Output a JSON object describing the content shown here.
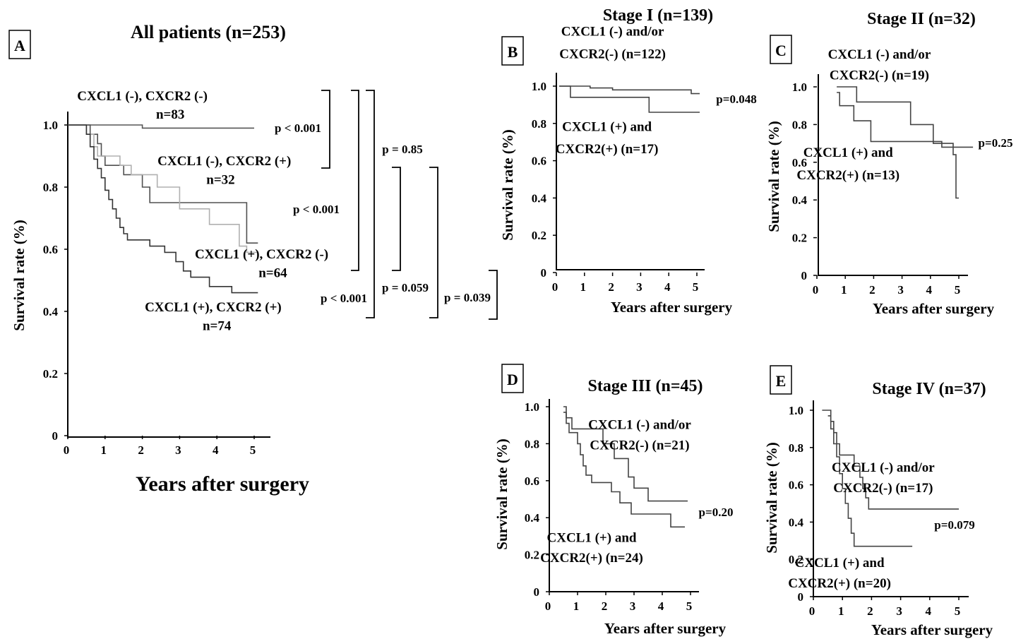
{
  "chart_data": [
    {
      "id": "A",
      "type": "line",
      "panel_letter": "A",
      "title": "All patients (n=253)",
      "xlabel": "Years after surgery",
      "ylabel": "Survival rate (%)",
      "xlim": [
        0,
        5.5
      ],
      "ylim": [
        0,
        1.0
      ],
      "xticks": [
        "0",
        "1",
        "2",
        "3",
        "4",
        "5"
      ],
      "yticks": [
        "0",
        "0.2",
        "0.4",
        "0.6",
        "0.8",
        "1.0"
      ],
      "series": [
        {
          "color": "#555555",
          "points": [
            [
              0,
              1.0
            ],
            [
              2.0,
              1.0
            ],
            [
              2.0,
              0.99
            ],
            [
              5.0,
              0.99
            ]
          ]
        },
        {
          "color": "#505050",
          "points": [
            [
              0,
              1.0
            ],
            [
              0.6,
              1.0
            ],
            [
              0.6,
              0.97
            ],
            [
              0.8,
              0.97
            ],
            [
              0.8,
              0.94
            ],
            [
              0.9,
              0.94
            ],
            [
              0.9,
              0.9
            ],
            [
              1.0,
              0.9
            ],
            [
              1.0,
              0.87
            ],
            [
              1.5,
              0.87
            ],
            [
              1.5,
              0.84
            ],
            [
              2.0,
              0.84
            ],
            [
              2.0,
              0.8
            ],
            [
              2.2,
              0.8
            ],
            [
              2.2,
              0.75
            ],
            [
              4.8,
              0.75
            ],
            [
              4.8,
              0.62
            ],
            [
              5.1,
              0.62
            ]
          ]
        },
        {
          "color": "#b0b0b0",
          "points": [
            [
              0,
              1.0
            ],
            [
              0.5,
              1.0
            ],
            [
              0.5,
              0.97
            ],
            [
              0.7,
              0.97
            ],
            [
              0.7,
              0.93
            ],
            [
              0.8,
              0.93
            ],
            [
              0.8,
              0.9
            ],
            [
              1.4,
              0.9
            ],
            [
              1.4,
              0.87
            ],
            [
              1.7,
              0.87
            ],
            [
              1.7,
              0.84
            ],
            [
              2.4,
              0.84
            ],
            [
              2.4,
              0.8
            ],
            [
              3.0,
              0.8
            ],
            [
              3.0,
              0.73
            ],
            [
              3.8,
              0.73
            ],
            [
              3.8,
              0.68
            ],
            [
              4.6,
              0.68
            ],
            [
              4.6,
              0.61
            ],
            [
              4.8,
              0.61
            ],
            [
              4.8,
              0.59
            ],
            [
              5.1,
              0.59
            ]
          ]
        },
        {
          "color": "#333333",
          "points": [
            [
              0,
              1.0
            ],
            [
              0.5,
              1.0
            ],
            [
              0.5,
              0.97
            ],
            [
              0.6,
              0.97
            ],
            [
              0.6,
              0.93
            ],
            [
              0.7,
              0.93
            ],
            [
              0.7,
              0.89
            ],
            [
              0.8,
              0.89
            ],
            [
              0.8,
              0.86
            ],
            [
              0.9,
              0.86
            ],
            [
              0.9,
              0.83
            ],
            [
              1.0,
              0.83
            ],
            [
              1.0,
              0.79
            ],
            [
              1.1,
              0.79
            ],
            [
              1.1,
              0.76
            ],
            [
              1.2,
              0.76
            ],
            [
              1.2,
              0.73
            ],
            [
              1.3,
              0.73
            ],
            [
              1.3,
              0.7
            ],
            [
              1.4,
              0.7
            ],
            [
              1.4,
              0.67
            ],
            [
              1.5,
              0.67
            ],
            [
              1.5,
              0.65
            ],
            [
              1.6,
              0.65
            ],
            [
              1.6,
              0.63
            ],
            [
              2.2,
              0.63
            ],
            [
              2.2,
              0.61
            ],
            [
              2.6,
              0.61
            ],
            [
              2.6,
              0.59
            ],
            [
              2.9,
              0.59
            ],
            [
              2.9,
              0.56
            ],
            [
              3.1,
              0.56
            ],
            [
              3.1,
              0.53
            ],
            [
              3.3,
              0.53
            ],
            [
              3.3,
              0.51
            ],
            [
              3.8,
              0.51
            ],
            [
              3.8,
              0.48
            ],
            [
              4.4,
              0.48
            ],
            [
              4.4,
              0.46
            ],
            [
              5.1,
              0.46
            ]
          ]
        }
      ],
      "annotations": [
        {
          "text": "CXCL1 (-), CXCR2 (-)",
          "x": 2.0,
          "y": 1.08
        },
        {
          "text": "n=83",
          "x": 2.75,
          "y": 1.02
        },
        {
          "text": "CXCL1 (-), CXCR2 (+)",
          "x": 4.2,
          "y": 0.87
        },
        {
          "text": "n=32",
          "x": 4.1,
          "y": 0.81
        },
        {
          "text": "CXCL1 (+), CXCR2 (-)",
          "x": 5.2,
          "y": 0.57
        },
        {
          "text": "n=64",
          "x": 5.5,
          "y": 0.51
        },
        {
          "text": "CXCL1 (+), CXCR2 (+)",
          "x": 3.9,
          "y": 0.4
        },
        {
          "text": "n=74",
          "x": 4.0,
          "y": 0.34
        }
      ],
      "p_values": [
        "p < 0.001",
        "p < 0.001",
        "p < 0.001",
        "p = 0.85",
        "p = 0.059",
        "p = 0.039"
      ]
    },
    {
      "id": "B",
      "type": "line",
      "panel_letter": "B",
      "title": "Stage I (n=139)",
      "xlabel": "Years after surgery",
      "ylabel": "Survival rate (%)",
      "xlim": [
        0,
        5.5
      ],
      "ylim": [
        0,
        1.0
      ],
      "xticks": [
        "0",
        "1",
        "2",
        "3",
        "4",
        "5"
      ],
      "yticks": [
        "0",
        "0.2",
        "0.4",
        "0.6",
        "0.8",
        "1.0"
      ],
      "series": [
        {
          "color": "#444444",
          "points": [
            [
              0.1,
              1.0
            ],
            [
              1.2,
              1.0
            ],
            [
              1.2,
              0.99
            ],
            [
              2.0,
              0.99
            ],
            [
              2.0,
              0.98
            ],
            [
              4.8,
              0.98
            ],
            [
              4.8,
              0.96
            ],
            [
              5.1,
              0.96
            ]
          ]
        },
        {
          "color": "#444444",
          "points": [
            [
              0.1,
              1.0
            ],
            [
              0.5,
              1.0
            ],
            [
              0.5,
              0.94
            ],
            [
              3.3,
              0.94
            ],
            [
              3.3,
              0.86
            ],
            [
              5.1,
              0.86
            ]
          ]
        }
      ],
      "annotations": [
        {
          "text": "CXCL1 (-) and/or",
          "x": 2.0,
          "y": 1.27
        },
        {
          "text": "CXCR2(-) (n=122)",
          "x": 2.0,
          "y": 1.15
        },
        {
          "text": "CXCL1 (+) and",
          "x": 1.8,
          "y": 0.76
        },
        {
          "text": "CXCR2(+) (n=17)",
          "x": 1.8,
          "y": 0.64
        }
      ],
      "p_values": [
        "p=0.048"
      ]
    },
    {
      "id": "C",
      "type": "line",
      "panel_letter": "C",
      "title": "Stage II (n=32)",
      "xlabel": "Years after surgery",
      "ylabel": "Survival rate (%)",
      "xlim": [
        0,
        5.5
      ],
      "ylim": [
        0,
        1.0
      ],
      "xticks": [
        "0",
        "1",
        "2",
        "3",
        "4",
        "5"
      ],
      "yticks": [
        "0",
        "0.2",
        "0.4",
        "0.6",
        "0.8",
        "1.0"
      ],
      "series": [
        {
          "color": "#444444",
          "points": [
            [
              0.7,
              1.0
            ],
            [
              1.4,
              1.0
            ],
            [
              1.4,
              0.92
            ],
            [
              3.3,
              0.92
            ],
            [
              3.3,
              0.8
            ],
            [
              4.1,
              0.8
            ],
            [
              4.1,
              0.7
            ],
            [
              4.8,
              0.7
            ],
            [
              4.8,
              0.64
            ],
            [
              4.9,
              0.64
            ],
            [
              4.9,
              0.41
            ],
            [
              5.0,
              0.41
            ]
          ]
        },
        {
          "color": "#444444",
          "points": [
            [
              0.7,
              0.97
            ],
            [
              0.8,
              0.97
            ],
            [
              0.8,
              0.9
            ],
            [
              1.3,
              0.9
            ],
            [
              1.3,
              0.82
            ],
            [
              1.9,
              0.82
            ],
            [
              1.9,
              0.71
            ],
            [
              4.4,
              0.71
            ],
            [
              4.4,
              0.68
            ],
            [
              5.5,
              0.68
            ]
          ]
        }
      ],
      "annotations": [
        {
          "text": "CXCL1 (-) and/or",
          "x": 2.2,
          "y": 1.15
        },
        {
          "text": "CXCR2(-) (n=19)",
          "x": 2.2,
          "y": 1.04
        },
        {
          "text": "CXCL1 (+) and",
          "x": 1.1,
          "y": 0.63
        },
        {
          "text": "CXCR2(+) (n=13)",
          "x": 1.1,
          "y": 0.51
        }
      ],
      "p_values": [
        "p=0.25"
      ]
    },
    {
      "id": "D",
      "type": "line",
      "panel_letter": "D",
      "title": "Stage III (n=45)",
      "xlabel": "Years after surgery",
      "ylabel": "Survival rate (%)",
      "xlim": [
        0,
        5.3
      ],
      "ylim": [
        0,
        1.0
      ],
      "xticks": [
        "0",
        "1",
        "2",
        "3",
        "4",
        "5"
      ],
      "yticks": [
        "0",
        "0.2",
        "0.4",
        "0.6",
        "0.8",
        "1.0"
      ],
      "series": [
        {
          "color": "#444444",
          "points": [
            [
              0.5,
              1.0
            ],
            [
              0.6,
              1.0
            ],
            [
              0.6,
              0.94
            ],
            [
              0.8,
              0.94
            ],
            [
              0.8,
              0.88
            ],
            [
              1.9,
              0.88
            ],
            [
              1.9,
              0.8
            ],
            [
              2.3,
              0.8
            ],
            [
              2.3,
              0.72
            ],
            [
              2.8,
              0.72
            ],
            [
              2.8,
              0.62
            ],
            [
              3.0,
              0.62
            ],
            [
              3.0,
              0.56
            ],
            [
              3.5,
              0.56
            ],
            [
              3.5,
              0.49
            ],
            [
              4.9,
              0.49
            ]
          ]
        },
        {
          "color": "#444444",
          "points": [
            [
              0.5,
              0.97
            ],
            [
              0.6,
              0.97
            ],
            [
              0.6,
              0.91
            ],
            [
              0.7,
              0.91
            ],
            [
              0.7,
              0.86
            ],
            [
              1.0,
              0.86
            ],
            [
              1.0,
              0.8
            ],
            [
              1.1,
              0.8
            ],
            [
              1.1,
              0.74
            ],
            [
              1.2,
              0.74
            ],
            [
              1.2,
              0.68
            ],
            [
              1.3,
              0.68
            ],
            [
              1.3,
              0.63
            ],
            [
              1.5,
              0.63
            ],
            [
              1.5,
              0.59
            ],
            [
              2.2,
              0.59
            ],
            [
              2.2,
              0.54
            ],
            [
              2.5,
              0.54
            ],
            [
              2.5,
              0.48
            ],
            [
              2.9,
              0.48
            ],
            [
              2.9,
              0.42
            ],
            [
              4.3,
              0.42
            ],
            [
              4.3,
              0.35
            ],
            [
              4.8,
              0.35
            ]
          ]
        }
      ],
      "annotations": [
        {
          "text": "CXCL1 (-) and/or",
          "x": 3.2,
          "y": 0.88
        },
        {
          "text": "CXCR2(-) (n=21)",
          "x": 3.2,
          "y": 0.77
        },
        {
          "text": "CXCL1 (+) and",
          "x": 1.5,
          "y": 0.27
        },
        {
          "text": "CXCR2(+) (n=24)",
          "x": 1.5,
          "y": 0.16
        }
      ],
      "p_values": [
        "p=0.20"
      ]
    },
    {
      "id": "E",
      "type": "line",
      "panel_letter": "E",
      "title": "Stage IV (n=37)",
      "xlabel": "Years after surgery",
      "ylabel": "Survival rate (%)",
      "xlim": [
        0,
        5.3
      ],
      "ylim": [
        0,
        1.0
      ],
      "xticks": [
        "0",
        "1",
        "2",
        "3",
        "4",
        "5"
      ],
      "yticks": [
        "0",
        "0.2",
        "0.4",
        "0.6",
        "0.8",
        "1.0"
      ],
      "series": [
        {
          "color": "#444444",
          "points": [
            [
              0.3,
              1.0
            ],
            [
              0.6,
              1.0
            ],
            [
              0.6,
              0.94
            ],
            [
              0.7,
              0.94
            ],
            [
              0.7,
              0.88
            ],
            [
              0.8,
              0.88
            ],
            [
              0.8,
              0.82
            ],
            [
              0.9,
              0.82
            ],
            [
              0.9,
              0.76
            ],
            [
              1.4,
              0.76
            ],
            [
              1.4,
              0.7
            ],
            [
              1.6,
              0.7
            ],
            [
              1.6,
              0.64
            ],
            [
              1.7,
              0.64
            ],
            [
              1.7,
              0.58
            ],
            [
              1.8,
              0.58
            ],
            [
              1.8,
              0.53
            ],
            [
              1.9,
              0.53
            ],
            [
              1.9,
              0.47
            ],
            [
              5.0,
              0.47
            ]
          ]
        },
        {
          "color": "#444444",
          "points": [
            [
              0.5,
              0.97
            ],
            [
              0.6,
              0.97
            ],
            [
              0.6,
              0.9
            ],
            [
              0.7,
              0.9
            ],
            [
              0.7,
              0.82
            ],
            [
              0.8,
              0.82
            ],
            [
              0.8,
              0.75
            ],
            [
              0.9,
              0.75
            ],
            [
              0.9,
              0.66
            ],
            [
              1.0,
              0.66
            ],
            [
              1.0,
              0.58
            ],
            [
              1.1,
              0.58
            ],
            [
              1.1,
              0.5
            ],
            [
              1.2,
              0.5
            ],
            [
              1.2,
              0.42
            ],
            [
              1.3,
              0.42
            ],
            [
              1.3,
              0.34
            ],
            [
              1.4,
              0.34
            ],
            [
              1.4,
              0.27
            ],
            [
              3.4,
              0.27
            ]
          ]
        }
      ],
      "annotations": [
        {
          "text": "CXCL1 (-) and/or",
          "x": 2.4,
          "y": 0.67
        },
        {
          "text": "CXCR2(-) (n=17)",
          "x": 2.4,
          "y": 0.56
        },
        {
          "text": "CXCL1 (+) and",
          "x": 0.9,
          "y": 0.16
        },
        {
          "text": "CXCR2(+) (n=20)",
          "x": 0.9,
          "y": 0.05
        }
      ],
      "p_values": [
        "p=0.079"
      ]
    }
  ]
}
